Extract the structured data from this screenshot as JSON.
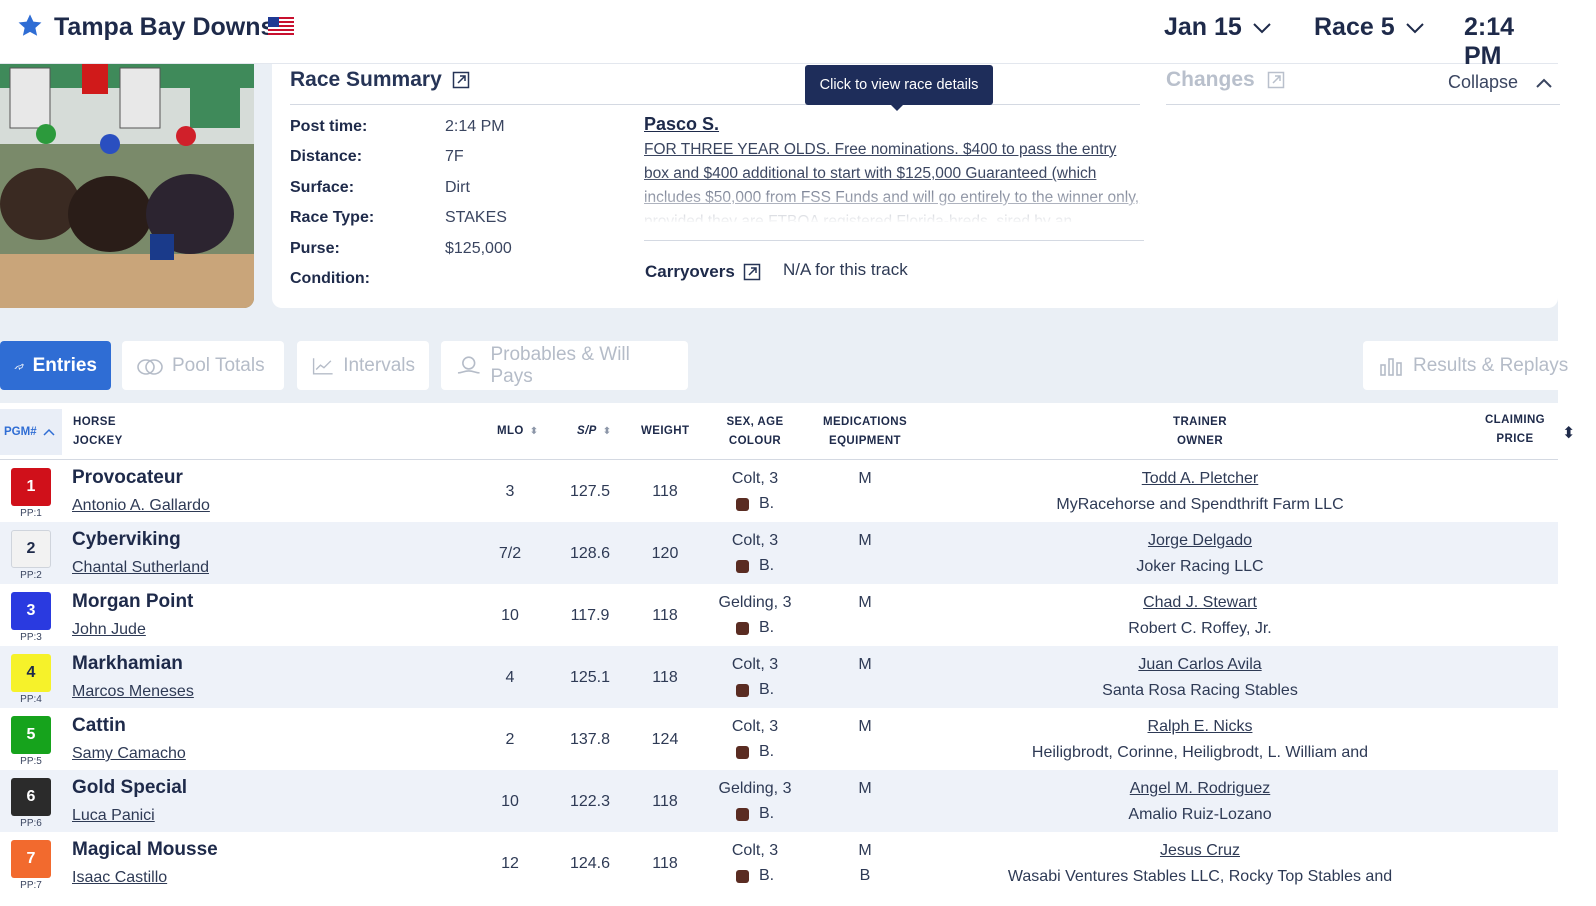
{
  "header": {
    "track": "Tampa Bay Downs",
    "date": "Jan 15",
    "race": "Race 5",
    "time": "2:14 PM"
  },
  "summary": {
    "title": "Race Summary",
    "fields": [
      {
        "label": "Post time:",
        "value": "2:14 PM"
      },
      {
        "label": "Distance:",
        "value": "7F"
      },
      {
        "label": "Surface:",
        "value": "Dirt"
      },
      {
        "label": "Race Type:",
        "value": "STAKES"
      },
      {
        "label": "Purse:",
        "value": "$125,000"
      },
      {
        "label": "Condition:",
        "value": ""
      }
    ],
    "condition_name": "Pasco S.",
    "condition_text": "FOR THREE YEAR OLDS. Free nominations. $400 to pass the entry box and $400 additional to start with $125,000 Guaranteed (which includes $50,000 from FSS Funds and will go entirely to the winner only, provided they are FTBOA registered Florida-breds, sired by an",
    "carryovers_label": "Carryovers",
    "carryovers_value": "N/A for this track",
    "tooltip": "Click to view race details",
    "changes_label": "Changes",
    "collapse_label": "Collapse"
  },
  "tabs": [
    {
      "label": "Entries",
      "icon": "horse-racing-icon",
      "active": true
    },
    {
      "label": "Pool Totals",
      "icon": "coins-icon",
      "active": false
    },
    {
      "label": "Intervals",
      "icon": "line-chart-icon",
      "active": false
    },
    {
      "label": "Probables & Will Pays",
      "icon": "money-hand-icon",
      "active": false
    },
    {
      "label": "Results & Replays",
      "icon": "bar-chart-icon",
      "active": false
    }
  ],
  "table": {
    "headers": {
      "pgm": "PGM#",
      "horse": "HORSE",
      "jockey": "JOCKEY",
      "mlo": "MLO",
      "speed": "S/P",
      "weight": "WEIGHT",
      "sexage": "SEX, AGE",
      "colour": "COLOUR",
      "medications": "MEDICATIONS",
      "equipment": "EQUIPMENT",
      "trainer": "TRAINER",
      "owner": "OWNER",
      "claiming": "CLAIMING",
      "price": "PRICE"
    },
    "rows": [
      {
        "pgm": "1",
        "pp": "PP:1",
        "pgm_bg": "#d0101a",
        "pgm_fg": "#ffffff",
        "horse": "Provocateur",
        "jockey": "Antonio A. Gallardo",
        "mlo": "3",
        "speed": "127.5",
        "weight": "118",
        "sexage": "Colt, 3",
        "colour": "B.",
        "med": "M",
        "equip": "",
        "trainer": "Todd A. Pletcher",
        "owner": "MyRacehorse and Spendthrift Farm LLC"
      },
      {
        "pgm": "2",
        "pp": "PP:2",
        "pgm_bg": "#f2f2f2",
        "pgm_fg": "#1e2a4a",
        "horse": "Cyberviking",
        "jockey": "Chantal Sutherland",
        "mlo": "7/2",
        "speed": "128.6",
        "weight": "120",
        "sexage": "Colt, 3",
        "colour": "B.",
        "med": "M",
        "equip": "",
        "trainer": "Jorge Delgado",
        "owner": "Joker Racing LLC"
      },
      {
        "pgm": "3",
        "pp": "PP:3",
        "pgm_bg": "#2a3ae0",
        "pgm_fg": "#ffffff",
        "horse": "Morgan Point",
        "jockey": "John Jude",
        "mlo": "10",
        "speed": "117.9",
        "weight": "118",
        "sexage": "Gelding, 3",
        "colour": "B.",
        "med": "M",
        "equip": "",
        "trainer": "Chad J. Stewart",
        "owner": "Robert C. Roffey, Jr."
      },
      {
        "pgm": "4",
        "pp": "PP:4",
        "pgm_bg": "#f6f22a",
        "pgm_fg": "#1e2a4a",
        "horse": "Markhamian",
        "jockey": "Marcos Meneses",
        "mlo": "4",
        "speed": "125.1",
        "weight": "118",
        "sexage": "Colt, 3",
        "colour": "B.",
        "med": "M",
        "equip": "",
        "trainer": "Juan Carlos Avila",
        "owner": "Santa Rosa Racing Stables"
      },
      {
        "pgm": "5",
        "pp": "PP:5",
        "pgm_bg": "#16a31c",
        "pgm_fg": "#ffffff",
        "horse": "Cattin",
        "jockey": "Samy Camacho",
        "mlo": "2",
        "speed": "137.8",
        "weight": "124",
        "sexage": "Colt, 3",
        "colour": "B.",
        "med": "M",
        "equip": "",
        "trainer": "Ralph E. Nicks",
        "owner": "Heiligbrodt, Corinne, Heiligbrodt, L. William and"
      },
      {
        "pgm": "6",
        "pp": "PP:6",
        "pgm_bg": "#2b2b2b",
        "pgm_fg": "#ffffff",
        "horse": "Gold Special",
        "jockey": "Luca Panici",
        "mlo": "10",
        "speed": "122.3",
        "weight": "118",
        "sexage": "Gelding, 3",
        "colour": "B.",
        "med": "M",
        "equip": "",
        "trainer": "Angel M. Rodriguez",
        "owner": "Amalio Ruiz-Lozano"
      },
      {
        "pgm": "7",
        "pp": "PP:7",
        "pgm_bg": "#f26a2e",
        "pgm_fg": "#ffffff",
        "horse": "Magical Mousse",
        "jockey": "Isaac Castillo",
        "mlo": "12",
        "speed": "124.6",
        "weight": "118",
        "sexage": "Colt, 3",
        "colour": "B.",
        "med": "M",
        "equip": "B",
        "trainer": "Jesus Cruz",
        "owner": "Wasabi Ventures Stables LLC, Rocky Top Stables and"
      }
    ]
  }
}
